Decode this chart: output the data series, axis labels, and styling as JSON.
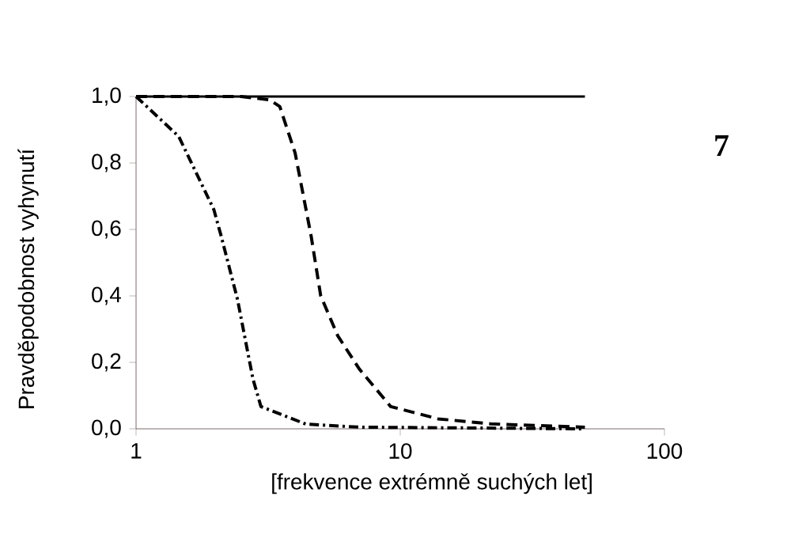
{
  "chart_data": {
    "type": "line",
    "xlabel": "[frekvence extrémně suchých let]",
    "ylabel": "Pravděpodobnost vyhynutí",
    "annotations": [
      "7"
    ],
    "log": "x",
    "xlim": [
      1,
      100
    ],
    "xticks": [
      1,
      10,
      100
    ],
    "ylim": [
      0,
      1
    ],
    "yticks": [
      {
        "value": 0,
        "label": "0,0"
      },
      {
        "value": 0.2,
        "label": "0,2"
      },
      {
        "value": 0.4,
        "label": "0,4"
      },
      {
        "value": 0.6,
        "label": "0,6"
      },
      {
        "value": 0.8,
        "label": "0,8"
      },
      {
        "value": 1,
        "label": "1,0"
      }
    ],
    "marker": "none",
    "series": [
      {
        "color": "#000000",
        "line_style": "solid",
        "x": [
          1,
          50
        ],
        "values": [
          1.0,
          1.0
        ]
      },
      {
        "color": "#000000",
        "line_style": "dashed",
        "x": [
          1,
          2.5,
          3.2,
          3.5,
          4.0,
          4.6,
          5.0,
          5.8,
          7.0,
          9.2,
          13.9,
          22,
          50
        ],
        "values": [
          1.0,
          1.0,
          0.99,
          0.97,
          0.83,
          0.58,
          0.4,
          0.28,
          0.18,
          0.067,
          0.03,
          0.015,
          0.005
        ]
      },
      {
        "color": "#000000",
        "line_style": "dashdot",
        "x": [
          1,
          1.45,
          1.97,
          2.1,
          2.42,
          2.77,
          2.97,
          4.4,
          7.0,
          50
        ],
        "values": [
          1.0,
          0.88,
          0.66,
          0.58,
          0.39,
          0.15,
          0.067,
          0.014,
          0.005,
          0.0
        ]
      }
    ]
  }
}
